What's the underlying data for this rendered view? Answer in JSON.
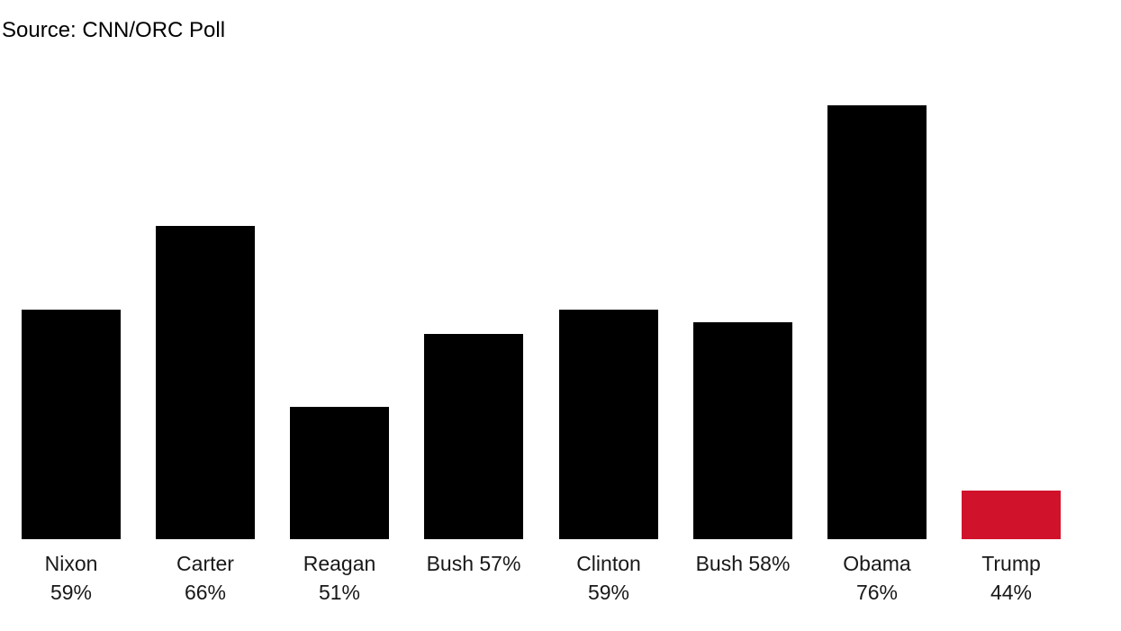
{
  "source_caption": "Source: CNN/ORC Poll",
  "colors": {
    "background": "#ffffff",
    "bar_default": "#000000",
    "bar_highlight": "#d1122b",
    "label_text": "#181818",
    "source_text": "#000000"
  },
  "chart_data": {
    "type": "bar",
    "title": "",
    "source": "Source: CNN/ORC Poll",
    "categories": [
      "Nixon",
      "Carter",
      "Reagan",
      "Bush",
      "Clinton",
      "Bush",
      "Obama",
      "Trump"
    ],
    "values": [
      59,
      66,
      51,
      57,
      59,
      58,
      76,
      44
    ],
    "unit": "%",
    "bar_labels": [
      [
        "Nixon",
        "59%"
      ],
      [
        "Carter",
        "66%"
      ],
      [
        "Reagan",
        "51%"
      ],
      [
        "Bush 57%"
      ],
      [
        "Clinton",
        "59%"
      ],
      [
        "Bush 58%"
      ],
      [
        "Obama",
        "76%"
      ],
      [
        "Trump",
        "44%"
      ]
    ],
    "bar_colors": [
      "#000000",
      "#000000",
      "#000000",
      "#000000",
      "#000000",
      "#000000",
      "#000000",
      "#d1122b"
    ],
    "xlabel": "",
    "ylabel": "",
    "ylim": [
      40,
      76
    ],
    "baseline_value": 40,
    "grid": false,
    "axes_visible": false,
    "legend": "none"
  }
}
